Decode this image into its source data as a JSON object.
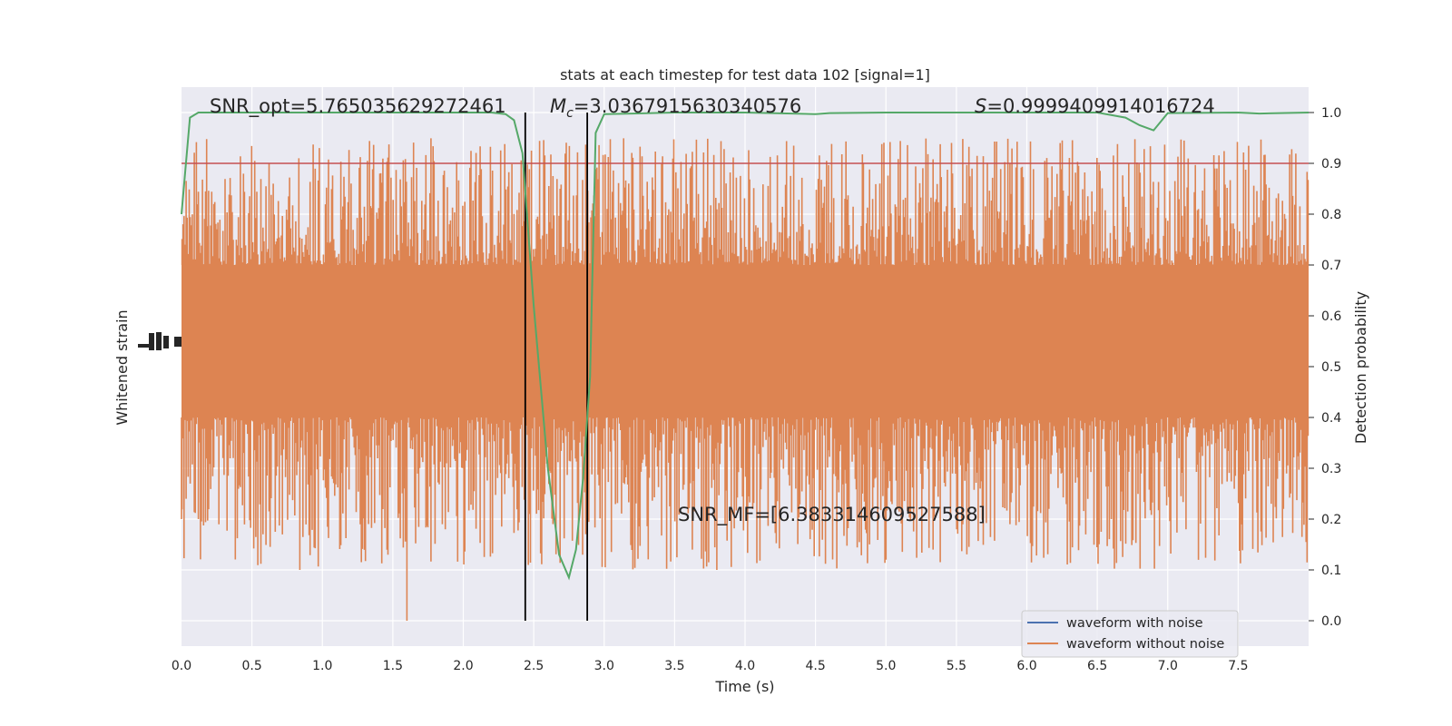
{
  "chart_data": {
    "type": "line",
    "title": "stats at each timestep for test data 102 [signal=1]",
    "xlabel": "Time (s)",
    "ylabel_left": "Whitened strain",
    "ylabel_right": "Detection probability",
    "xlim": [
      0.0,
      8.0
    ],
    "ylim_right": [
      -0.05,
      1.05
    ],
    "x_ticks": [
      "0.0",
      "0.5",
      "1.0",
      "1.5",
      "2.0",
      "2.5",
      "3.0",
      "3.5",
      "4.0",
      "4.5",
      "5.0",
      "5.5",
      "6.0",
      "6.5",
      "7.0",
      "7.5"
    ],
    "x_tick_values": [
      0.0,
      0.5,
      1.0,
      1.5,
      2.0,
      2.5,
      3.0,
      3.5,
      4.0,
      4.5,
      5.0,
      5.5,
      6.0,
      6.5,
      7.0,
      7.5
    ],
    "y_ticks_right": [
      "0.0",
      "0.1",
      "0.2",
      "0.3",
      "0.4",
      "0.5",
      "0.6",
      "0.7",
      "0.8",
      "0.9",
      "1.0"
    ],
    "y_tick_values_right": [
      0.0,
      0.1,
      0.2,
      0.3,
      0.4,
      0.5,
      0.6,
      0.7,
      0.8,
      0.9,
      1.0
    ],
    "grid": true,
    "legend_placement": "lower-right",
    "annotations": {
      "snr_opt": "SNR_opt=5.765035629272461",
      "mc_prefix": "M",
      "mc_sub": "c",
      "mc_value": "=3.0367915630340576",
      "s_prefix": "S",
      "s_value": "=0.9999409914016724",
      "snr_mf": "SNR_MF=[6.383314609527588]"
    },
    "threshold": 0.9,
    "vlines": [
      2.44,
      2.88
    ],
    "series": [
      {
        "name": "waveform with noise",
        "color": "#4c72b0"
      },
      {
        "name": "waveform without noise",
        "color": "#dd8452"
      }
    ],
    "probability": {
      "color": "#55a868",
      "x": [
        0.0,
        0.06,
        0.12,
        0.25,
        0.5,
        0.8,
        1.0,
        1.5,
        2.0,
        2.2,
        2.3,
        2.36,
        2.42,
        2.5,
        2.6,
        2.68,
        2.75,
        2.8,
        2.85,
        2.9,
        2.94,
        3.0,
        3.2,
        3.5,
        4.0,
        4.5,
        4.6,
        5.0,
        5.5,
        6.0,
        6.5,
        6.7,
        6.8,
        6.9,
        7.0,
        7.5,
        7.65,
        8.0
      ],
      "y": [
        0.8,
        0.99,
        1.0,
        1.0,
        1.0,
        1.0,
        1.0,
        1.0,
        1.0,
        1.0,
        0.997,
        0.985,
        0.92,
        0.62,
        0.3,
        0.13,
        0.085,
        0.14,
        0.28,
        0.48,
        0.96,
        0.997,
        0.998,
        1.0,
        1.0,
        0.997,
        0.999,
        1.0,
        1.0,
        1.0,
        1.0,
        0.99,
        0.975,
        0.965,
        0.999,
        1.0,
        0.998,
        1.0
      ]
    },
    "strain_approx": {
      "x_start": 0.0,
      "x_end": 8.0,
      "core_band": [
        0.4,
        0.7
      ],
      "spike_top_range": [
        0.7,
        0.95
      ],
      "spike_bottom_range": [
        0.1,
        0.4
      ],
      "extreme_min": {
        "x": 1.6,
        "y": 0.0
      },
      "extreme_dips": [
        [
          0.84,
          0.1
        ],
        [
          3.8,
          0.1
        ],
        [
          5.88,
          0.19
        ],
        [
          7.13,
          0.18
        ],
        [
          0.0,
          0.2
        ]
      ]
    },
    "left_axis_glyph_label": "1e-22"
  }
}
